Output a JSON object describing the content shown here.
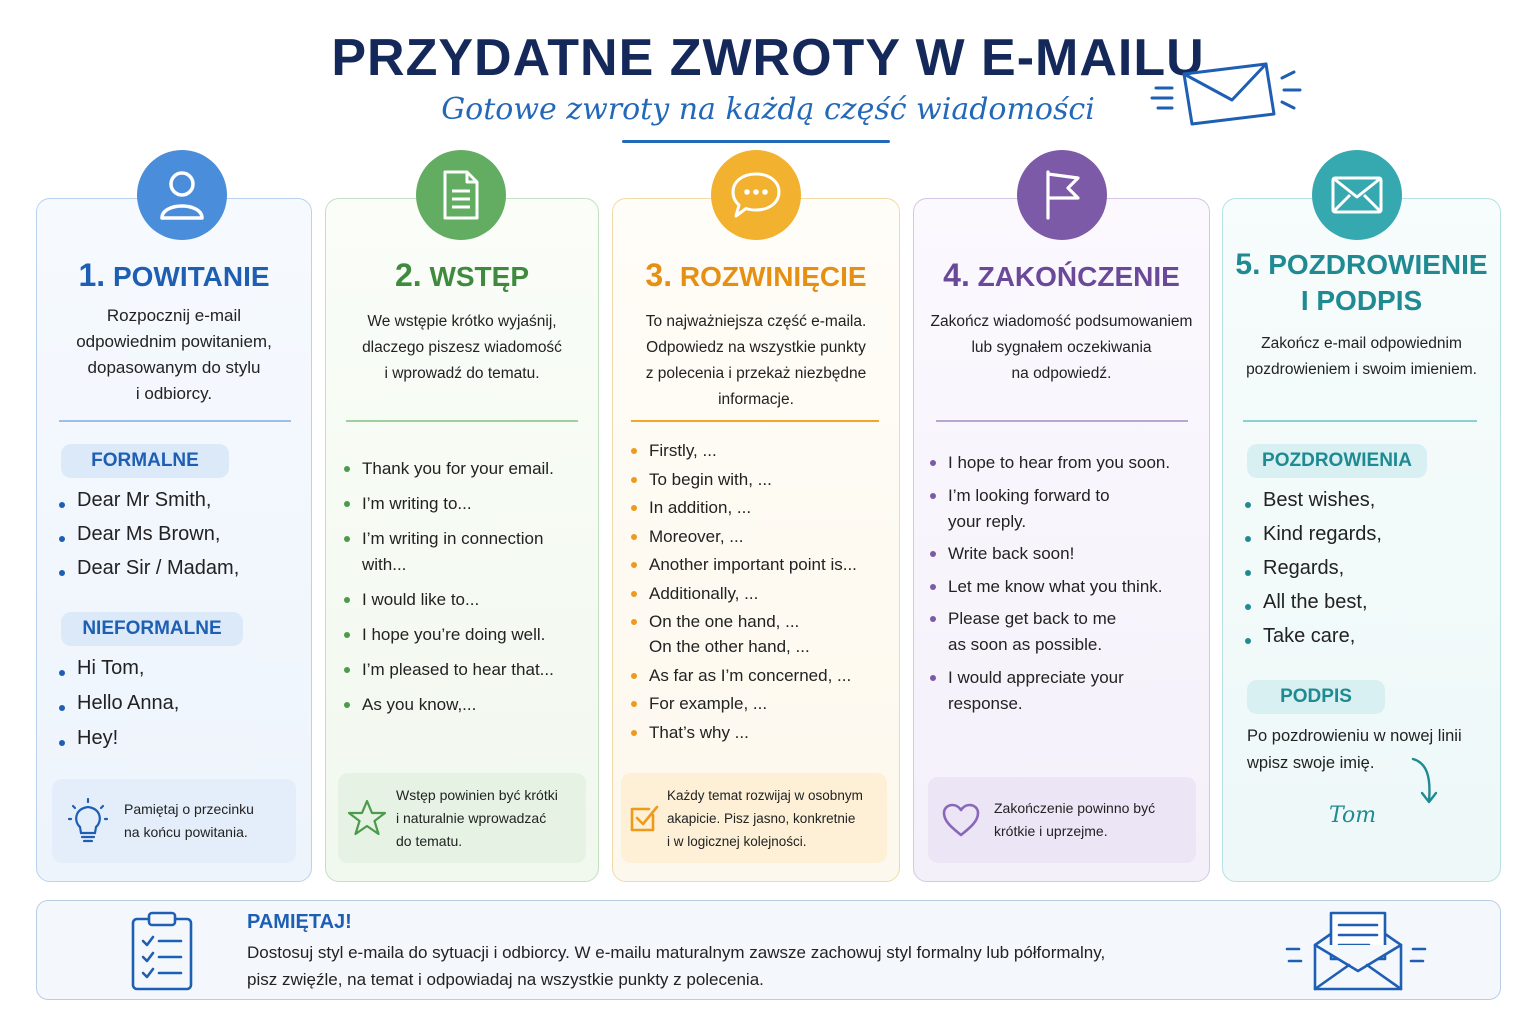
{
  "header": {
    "title": "PRZYDATNE ZWROTY W E-MAILU",
    "subtitle": "Gotowe zwroty na każdą część wiadomości"
  },
  "colors": {
    "blue": "#3f86d6",
    "green": "#5aa45a",
    "orange": "#f0a82a",
    "purple": "#7d5aa8",
    "teal": "#2a9aa2",
    "navy": "#14295a"
  },
  "cards": [
    {
      "number": "1.",
      "title": "POWITANIE",
      "icon": "user-icon",
      "desc": [
        "Rozpocznij e-mail",
        "odpowiednim powitaniem,",
        "dopasowanym do stylu",
        "i odbiorcy."
      ],
      "groups": [
        {
          "label": "FORMALNE",
          "items": [
            "Dear Mr Smith,",
            "Dear Ms Brown,",
            "Dear Sir / Madam,"
          ]
        },
        {
          "label": "NIEFORMALNE",
          "items": [
            "Hi Tom,",
            "Hello Anna,",
            "Hey!"
          ]
        }
      ],
      "tip_icon": "lightbulb-icon",
      "tip": [
        "Pamiętaj o przecinku",
        "na końcu powitania."
      ]
    },
    {
      "number": "2.",
      "title": "WSTĘP",
      "icon": "document-icon",
      "desc": [
        "We wstępie krótko wyjaśnij,",
        "dlaczego piszesz wiadomość",
        "i wprowadź do tematu."
      ],
      "items": [
        [
          "Thank you for your email."
        ],
        [
          "I’m writing to..."
        ],
        [
          "I’m writing in connection",
          "with..."
        ],
        [
          "I would like to..."
        ],
        [
          "I hope you’re doing well."
        ],
        [
          "I’m pleased to hear that..."
        ],
        [
          "As you know,..."
        ]
      ],
      "tip_icon": "star-icon",
      "tip": [
        "Wstęp powinien być krótki",
        "i naturalnie wprowadzać",
        "do tematu."
      ]
    },
    {
      "number": "3.",
      "title": "ROZWINIĘCIE",
      "icon": "chat-bubble-icon",
      "desc": [
        "To najważniejsza część e-maila.",
        "Odpowiedz na wszystkie punkty",
        "z polecenia i przekaż niezbędne",
        "informacje."
      ],
      "items": [
        [
          "Firstly, ..."
        ],
        [
          "To begin with, ..."
        ],
        [
          "In addition, ..."
        ],
        [
          "Moreover, ..."
        ],
        [
          "Another important point is..."
        ],
        [
          "Additionally, ..."
        ],
        [
          "On the one hand, ...",
          "On the other hand, ..."
        ],
        [
          "As far as I’m concerned, ..."
        ],
        [
          "For example, ..."
        ],
        [
          "That’s why ..."
        ]
      ],
      "tip_icon": "checkbox-icon",
      "tip": [
        "Każdy temat rozwijaj w osobnym",
        "akapicie. Pisz jasno, konkretnie",
        "i w logicznej kolejności."
      ]
    },
    {
      "number": "4.",
      "title": "ZAKOŃCZENIE",
      "icon": "flag-icon",
      "desc": [
        "Zakończ wiadomość podsumowaniem",
        "lub sygnałem oczekiwania",
        "na odpowiedź."
      ],
      "items": [
        [
          "I hope to hear from you soon."
        ],
        [
          "I’m looking forward to",
          "your reply."
        ],
        [
          "Write back soon!"
        ],
        [
          "Let me know what you think."
        ],
        [
          "Please get back to me",
          "as soon as possible."
        ],
        [
          "I would appreciate your",
          "response."
        ]
      ],
      "tip_icon": "heart-icon",
      "tip": [
        "Zakończenie powinno być",
        "krótkie i uprzejme."
      ]
    },
    {
      "number": "5.",
      "title": "POZDROWIENIE",
      "title2": "I PODPIS",
      "icon": "envelope-icon",
      "desc": [
        "Zakończ e-mail odpowiednim",
        "pozdrowieniem i swoim imieniem."
      ],
      "groups": [
        {
          "label": "POZDROWIENIA",
          "items": [
            "Best wishes,",
            "Kind regards,",
            "Regards,",
            "All the best,",
            "Take care,"
          ]
        },
        {
          "label": "PODPIS",
          "items": []
        }
      ],
      "signature_text": [
        "Po pozdrowieniu w nowej linii",
        "wpisz swoje imię."
      ],
      "signature_name": "Tom"
    }
  ],
  "note": {
    "title": "PAMIĘTAJ!",
    "lines": [
      "Dostosuj styl e-maila do sytuacji i odbiorcy. W e-mailu maturalnym zawsze zachowuj styl formalny lub półformalny,",
      "pisz zwięźle, na temat i odpowiadaj na wszystkie punkty z polecenia."
    ],
    "left_icon": "clipboard-checklist-icon",
    "right_icon": "open-envelope-icon"
  }
}
